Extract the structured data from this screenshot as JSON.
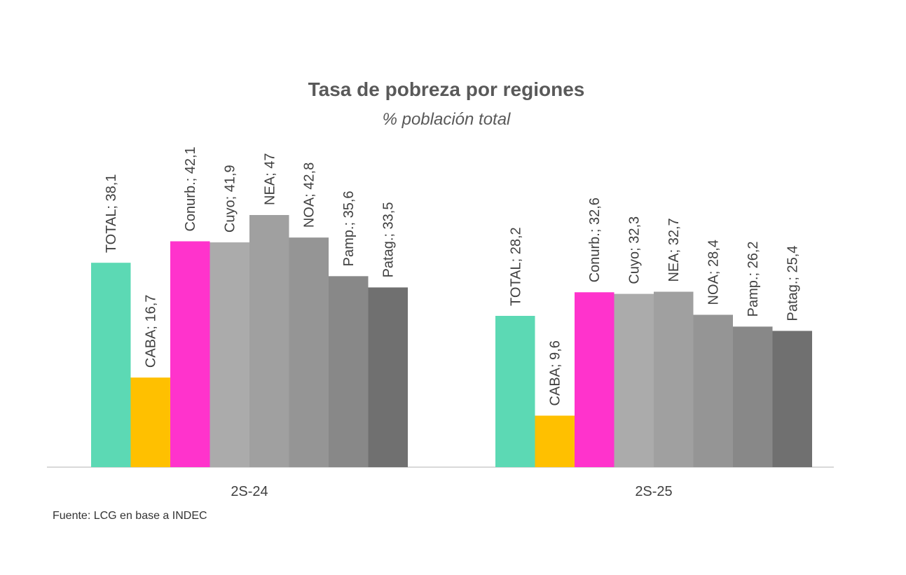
{
  "chart_data": {
    "type": "bar",
    "title": "Tasa de pobreza por regiones",
    "subtitle": "% población total",
    "source": "Fuente: LCG en base a INDEC",
    "categories": [
      "2S-24",
      "2S-25"
    ],
    "series": [
      {
        "color": "#5cd9b4",
        "values": [
          38.1,
          28.2
        ],
        "value_labels": [
          "TOTAL; 38,1",
          "TOTAL; 28,2"
        ]
      },
      {
        "color": "#ffc000",
        "values": [
          16.7,
          9.6
        ],
        "value_labels": [
          "CABA; 16,7",
          "CABA; 9,6"
        ]
      },
      {
        "color": "#ff33cc",
        "values": [
          42.1,
          32.6
        ],
        "value_labels": [
          "Conurb.; 42,1",
          "Conurb.; 32,6"
        ]
      },
      {
        "color": "#ababab",
        "values": [
          41.9,
          32.3
        ],
        "value_labels": [
          "Cuyo; 41,9",
          "Cuyo; 32,3"
        ]
      },
      {
        "color": "#a0a0a0",
        "values": [
          47,
          32.7
        ],
        "value_labels": [
          "NEA; 47",
          "NEA; 32,7"
        ]
      },
      {
        "color": "#959595",
        "values": [
          42.8,
          28.4
        ],
        "value_labels": [
          "NOA; 42,8",
          "NOA; 28,4"
        ]
      },
      {
        "color": "#888888",
        "values": [
          35.6,
          26.2
        ],
        "value_labels": [
          "Pamp.; 35,6",
          "Pamp.; 26,2"
        ]
      },
      {
        "color": "#707070",
        "values": [
          33.5,
          25.4
        ],
        "value_labels": [
          "Patag.; 33,5",
          "Patag.; 25,4"
        ]
      }
    ]
  }
}
